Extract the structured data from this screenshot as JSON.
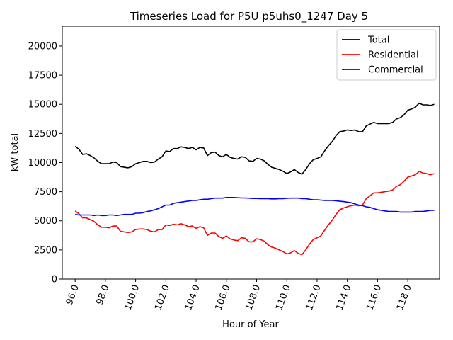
{
  "chart_data": {
    "type": "line",
    "title": "Timeseries Load for P5U p5uhs0_1247  Day 5",
    "xlabel": "Hour of Year",
    "ylabel": "kW total",
    "xlim": [
      95.15,
      120.1
    ],
    "ylim": [
      0,
      21700
    ],
    "xticks": [
      96.0,
      98.0,
      100.0,
      102.0,
      104.0,
      106.0,
      108.0,
      110.0,
      112.0,
      114.0,
      116.0,
      118.0
    ],
    "xtick_labels": [
      "96.0",
      "98.0",
      "100.0",
      "102.0",
      "104.0",
      "106.0",
      "108.0",
      "110.0",
      "112.0",
      "114.0",
      "116.0",
      "118.0"
    ],
    "yticks": [
      0,
      2500,
      5000,
      7500,
      10000,
      12500,
      15000,
      17500,
      20000
    ],
    "ytick_labels": [
      "0",
      "2500",
      "5000",
      "7500",
      "10000",
      "12500",
      "15000",
      "17500",
      "20000"
    ],
    "legend_position": "top-right",
    "series": [
      {
        "name": "Total",
        "color": "#000000",
        "points": [
          [
            96.0,
            11400
          ],
          [
            96.25,
            11150
          ],
          [
            96.5,
            10700
          ],
          [
            96.75,
            10750
          ],
          [
            97.0,
            10600
          ],
          [
            97.25,
            10400
          ],
          [
            97.5,
            10100
          ],
          [
            97.75,
            9900
          ],
          [
            98.0,
            9900
          ],
          [
            98.25,
            9900
          ],
          [
            98.5,
            10050
          ],
          [
            98.75,
            10000
          ],
          [
            99.0,
            9650
          ],
          [
            99.25,
            9600
          ],
          [
            99.5,
            9550
          ],
          [
            99.75,
            9650
          ],
          [
            100.0,
            9900
          ],
          [
            100.25,
            10000
          ],
          [
            100.5,
            10100
          ],
          [
            100.75,
            10100
          ],
          [
            101.0,
            10000
          ],
          [
            101.25,
            10050
          ],
          [
            101.5,
            10300
          ],
          [
            101.75,
            10500
          ],
          [
            102.0,
            11000
          ],
          [
            102.25,
            10950
          ],
          [
            102.5,
            11200
          ],
          [
            102.75,
            11200
          ],
          [
            103.0,
            11350
          ],
          [
            103.25,
            11300
          ],
          [
            103.5,
            11200
          ],
          [
            103.75,
            11300
          ],
          [
            104.0,
            11100
          ],
          [
            104.25,
            11300
          ],
          [
            104.5,
            11250
          ],
          [
            104.75,
            10600
          ],
          [
            105.0,
            10850
          ],
          [
            105.25,
            10900
          ],
          [
            105.5,
            10600
          ],
          [
            105.75,
            10500
          ],
          [
            106.0,
            10700
          ],
          [
            106.25,
            10450
          ],
          [
            106.5,
            10350
          ],
          [
            106.75,
            10300
          ],
          [
            107.0,
            10500
          ],
          [
            107.25,
            10450
          ],
          [
            107.5,
            10150
          ],
          [
            107.75,
            10100
          ],
          [
            108.0,
            10350
          ],
          [
            108.25,
            10300
          ],
          [
            108.5,
            10150
          ],
          [
            108.75,
            9850
          ],
          [
            109.0,
            9600
          ],
          [
            109.25,
            9500
          ],
          [
            109.5,
            9400
          ],
          [
            109.75,
            9250
          ],
          [
            110.0,
            9050
          ],
          [
            110.25,
            9200
          ],
          [
            110.5,
            9400
          ],
          [
            110.75,
            9150
          ],
          [
            111.0,
            9000
          ],
          [
            111.25,
            9400
          ],
          [
            111.5,
            9900
          ],
          [
            111.75,
            10250
          ],
          [
            112.0,
            10350
          ],
          [
            112.25,
            10500
          ],
          [
            112.5,
            11000
          ],
          [
            112.75,
            11450
          ],
          [
            113.0,
            11800
          ],
          [
            113.25,
            12300
          ],
          [
            113.5,
            12650
          ],
          [
            113.75,
            12700
          ],
          [
            114.0,
            12800
          ],
          [
            114.25,
            12750
          ],
          [
            114.5,
            12800
          ],
          [
            114.75,
            12650
          ],
          [
            115.0,
            12650
          ],
          [
            115.25,
            13150
          ],
          [
            115.5,
            13300
          ],
          [
            115.75,
            13450
          ],
          [
            116.0,
            13350
          ],
          [
            116.25,
            13350
          ],
          [
            116.5,
            13350
          ],
          [
            116.75,
            13350
          ],
          [
            117.0,
            13450
          ],
          [
            117.25,
            13750
          ],
          [
            117.5,
            13850
          ],
          [
            117.75,
            14100
          ],
          [
            118.0,
            14500
          ],
          [
            118.25,
            14600
          ],
          [
            118.5,
            14750
          ],
          [
            118.75,
            15100
          ],
          [
            119.0,
            14950
          ],
          [
            119.25,
            14950
          ],
          [
            119.5,
            14900
          ],
          [
            119.75,
            15000
          ]
        ]
      },
      {
        "name": "Residential",
        "color": "#ff0000",
        "points": [
          [
            96.0,
            5850
          ],
          [
            96.25,
            5600
          ],
          [
            96.5,
            5250
          ],
          [
            96.75,
            5250
          ],
          [
            97.0,
            5100
          ],
          [
            97.25,
            4950
          ],
          [
            97.5,
            4650
          ],
          [
            97.75,
            4450
          ],
          [
            98.0,
            4450
          ],
          [
            98.25,
            4400
          ],
          [
            98.5,
            4550
          ],
          [
            98.75,
            4550
          ],
          [
            99.0,
            4100
          ],
          [
            99.25,
            4050
          ],
          [
            99.5,
            4000
          ],
          [
            99.75,
            4050
          ],
          [
            100.0,
            4250
          ],
          [
            100.25,
            4300
          ],
          [
            100.5,
            4300
          ],
          [
            100.75,
            4250
          ],
          [
            101.0,
            4100
          ],
          [
            101.25,
            4050
          ],
          [
            101.5,
            4250
          ],
          [
            101.75,
            4250
          ],
          [
            102.0,
            4650
          ],
          [
            102.25,
            4600
          ],
          [
            102.5,
            4700
          ],
          [
            102.75,
            4650
          ],
          [
            103.0,
            4750
          ],
          [
            103.25,
            4650
          ],
          [
            103.5,
            4500
          ],
          [
            103.75,
            4550
          ],
          [
            104.0,
            4350
          ],
          [
            104.25,
            4500
          ],
          [
            104.5,
            4400
          ],
          [
            104.75,
            3750
          ],
          [
            105.0,
            3950
          ],
          [
            105.25,
            3950
          ],
          [
            105.5,
            3650
          ],
          [
            105.75,
            3500
          ],
          [
            106.0,
            3700
          ],
          [
            106.25,
            3450
          ],
          [
            106.5,
            3350
          ],
          [
            106.75,
            3300
          ],
          [
            107.0,
            3550
          ],
          [
            107.25,
            3500
          ],
          [
            107.5,
            3200
          ],
          [
            107.75,
            3200
          ],
          [
            108.0,
            3450
          ],
          [
            108.25,
            3400
          ],
          [
            108.5,
            3250
          ],
          [
            108.75,
            2950
          ],
          [
            109.0,
            2750
          ],
          [
            109.25,
            2650
          ],
          [
            109.5,
            2500
          ],
          [
            109.75,
            2350
          ],
          [
            110.0,
            2150
          ],
          [
            110.25,
            2250
          ],
          [
            110.5,
            2450
          ],
          [
            110.75,
            2200
          ],
          [
            111.0,
            2100
          ],
          [
            111.25,
            2500
          ],
          [
            111.5,
            3000
          ],
          [
            111.75,
            3400
          ],
          [
            112.0,
            3550
          ],
          [
            112.25,
            3700
          ],
          [
            112.5,
            4200
          ],
          [
            112.75,
            4650
          ],
          [
            113.0,
            5050
          ],
          [
            113.25,
            5550
          ],
          [
            113.5,
            5950
          ],
          [
            113.75,
            6100
          ],
          [
            114.0,
            6200
          ],
          [
            114.25,
            6300
          ],
          [
            114.5,
            6350
          ],
          [
            114.75,
            6300
          ],
          [
            115.0,
            6350
          ],
          [
            115.25,
            6900
          ],
          [
            115.5,
            7150
          ],
          [
            115.75,
            7400
          ],
          [
            116.0,
            7400
          ],
          [
            116.25,
            7450
          ],
          [
            116.5,
            7500
          ],
          [
            116.75,
            7550
          ],
          [
            117.0,
            7650
          ],
          [
            117.25,
            7950
          ],
          [
            117.5,
            8100
          ],
          [
            117.75,
            8400
          ],
          [
            118.0,
            8750
          ],
          [
            118.25,
            8850
          ],
          [
            118.5,
            8950
          ],
          [
            118.75,
            9250
          ],
          [
            119.0,
            9100
          ],
          [
            119.25,
            9050
          ],
          [
            119.5,
            8950
          ],
          [
            119.75,
            9050
          ]
        ]
      },
      {
        "name": "Commercial",
        "color": "#0000ff",
        "points": [
          [
            96.0,
            5550
          ],
          [
            96.25,
            5500
          ],
          [
            96.5,
            5500
          ],
          [
            96.75,
            5500
          ],
          [
            97.0,
            5500
          ],
          [
            97.25,
            5450
          ],
          [
            97.5,
            5500
          ],
          [
            97.75,
            5450
          ],
          [
            98.0,
            5450
          ],
          [
            98.25,
            5500
          ],
          [
            98.5,
            5500
          ],
          [
            98.75,
            5450
          ],
          [
            99.0,
            5500
          ],
          [
            99.25,
            5550
          ],
          [
            99.5,
            5550
          ],
          [
            99.75,
            5550
          ],
          [
            100.0,
            5650
          ],
          [
            100.25,
            5650
          ],
          [
            100.5,
            5700
          ],
          [
            100.75,
            5800
          ],
          [
            101.0,
            5850
          ],
          [
            101.25,
            5950
          ],
          [
            101.5,
            6050
          ],
          [
            101.75,
            6200
          ],
          [
            102.0,
            6350
          ],
          [
            102.25,
            6350
          ],
          [
            102.5,
            6500
          ],
          [
            102.75,
            6550
          ],
          [
            103.0,
            6600
          ],
          [
            103.25,
            6650
          ],
          [
            103.5,
            6700
          ],
          [
            103.75,
            6750
          ],
          [
            104.0,
            6750
          ],
          [
            104.25,
            6800
          ],
          [
            104.5,
            6850
          ],
          [
            104.75,
            6850
          ],
          [
            105.0,
            6900
          ],
          [
            105.25,
            6950
          ],
          [
            105.5,
            6950
          ],
          [
            105.75,
            6950
          ],
          [
            106.0,
            7000
          ],
          [
            106.25,
            7000
          ],
          [
            106.5,
            7000
          ],
          [
            106.75,
            6980
          ],
          [
            107.0,
            6960
          ],
          [
            107.25,
            6960
          ],
          [
            107.5,
            6940
          ],
          [
            107.75,
            6920
          ],
          [
            108.0,
            6920
          ],
          [
            108.25,
            6900
          ],
          [
            108.5,
            6900
          ],
          [
            108.75,
            6900
          ],
          [
            109.0,
            6880
          ],
          [
            109.25,
            6880
          ],
          [
            109.5,
            6900
          ],
          [
            109.75,
            6900
          ],
          [
            110.0,
            6930
          ],
          [
            110.25,
            6950
          ],
          [
            110.5,
            6950
          ],
          [
            110.75,
            6950
          ],
          [
            111.0,
            6900
          ],
          [
            111.25,
            6900
          ],
          [
            111.5,
            6850
          ],
          [
            111.75,
            6800
          ],
          [
            112.0,
            6800
          ],
          [
            112.25,
            6780
          ],
          [
            112.5,
            6750
          ],
          [
            112.75,
            6750
          ],
          [
            113.0,
            6750
          ],
          [
            113.25,
            6720
          ],
          [
            113.5,
            6680
          ],
          [
            113.75,
            6650
          ],
          [
            114.0,
            6600
          ],
          [
            114.25,
            6550
          ],
          [
            114.5,
            6450
          ],
          [
            114.75,
            6350
          ],
          [
            115.0,
            6300
          ],
          [
            115.25,
            6200
          ],
          [
            115.5,
            6150
          ],
          [
            115.75,
            6050
          ],
          [
            116.0,
            5950
          ],
          [
            116.25,
            5900
          ],
          [
            116.5,
            5850
          ],
          [
            116.75,
            5800
          ],
          [
            117.0,
            5800
          ],
          [
            117.25,
            5800
          ],
          [
            117.5,
            5750
          ],
          [
            117.75,
            5750
          ],
          [
            118.0,
            5750
          ],
          [
            118.25,
            5750
          ],
          [
            118.5,
            5800
          ],
          [
            118.75,
            5800
          ],
          [
            119.0,
            5800
          ],
          [
            119.25,
            5850
          ],
          [
            119.5,
            5900
          ],
          [
            119.75,
            5900
          ]
        ]
      }
    ]
  }
}
